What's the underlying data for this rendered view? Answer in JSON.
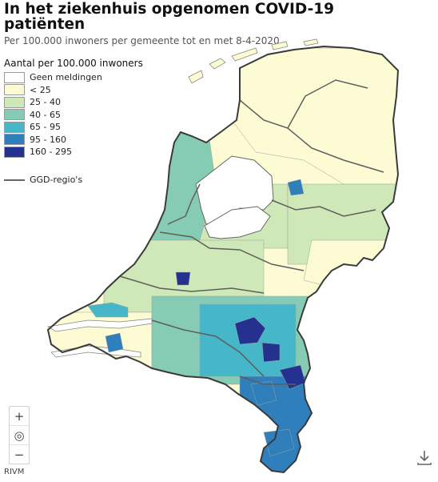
{
  "header": {
    "title": "In het ziekenhuis opgenomen COVID-19 patiënten",
    "subtitle": "Per 100.000 inwoners per gemeente tot en met 8-4-2020"
  },
  "legend": {
    "title": "Aantal per 100.000 inwoners",
    "items": [
      {
        "label": "Geen meldingen",
        "color": "#ffffff"
      },
      {
        "label": "< 25",
        "color": "#fdfbd3"
      },
      {
        "label": "25 - 40",
        "color": "#cfe8b8"
      },
      {
        "label": "40 - 65",
        "color": "#86cbb4"
      },
      {
        "label": "65 - 95",
        "color": "#45b7c8"
      },
      {
        "label": "95 - 160",
        "color": "#2f7fbc"
      },
      {
        "label": "160 - 295",
        "color": "#25318f"
      }
    ],
    "region_label": "GGD-regio's"
  },
  "map_controls": {
    "zoom_in": "+",
    "reset": "◎",
    "zoom_out": "−"
  },
  "source": "RIVM"
}
